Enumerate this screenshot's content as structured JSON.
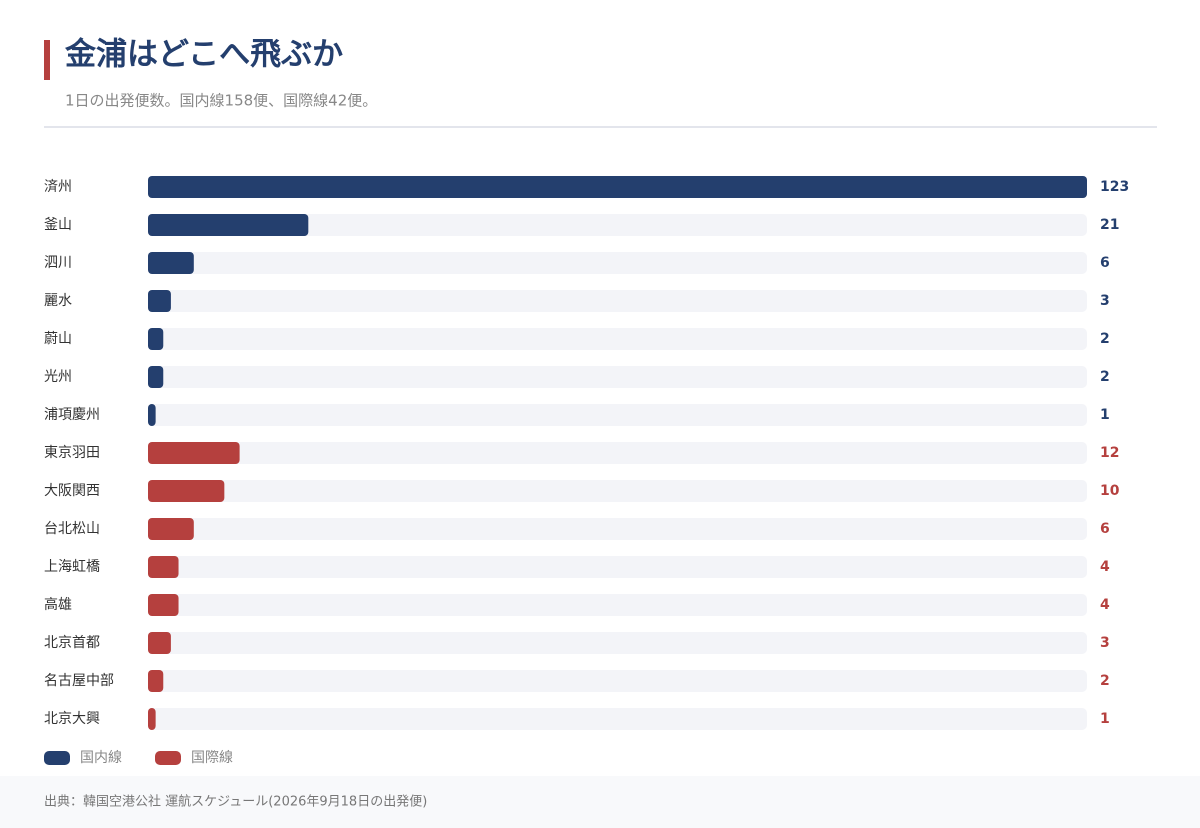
{
  "chart_data": {
    "type": "barh",
    "title": "金浦はどこへ飛ぶか",
    "subtitle": "1日の出発便数。国内線158便、国際線42便。",
    "categories": [
      "済州",
      "釜山",
      "泗川",
      "麗水",
      "蔚山",
      "光州",
      "浦項慶州",
      "東京羽田",
      "大阪関西",
      "台北松山",
      "上海虹橋",
      "高雄",
      "北京首都",
      "名古屋中部",
      "北京大興"
    ],
    "series": [
      {
        "name": "国内線",
        "color": "#243f6e",
        "values": [
          123,
          21,
          6,
          3,
          2,
          2,
          1,
          null,
          null,
          null,
          null,
          null,
          null,
          null,
          null
        ]
      },
      {
        "name": "国際線",
        "color": "#b5403e",
        "values": [
          null,
          null,
          null,
          null,
          null,
          null,
          null,
          12,
          10,
          6,
          4,
          4,
          3,
          2,
          1
        ]
      }
    ],
    "xlim": [
      0,
      123
    ],
    "source": "出典：韓国空港公社 運航スケジュール(2026年9月18日の出発便)"
  }
}
